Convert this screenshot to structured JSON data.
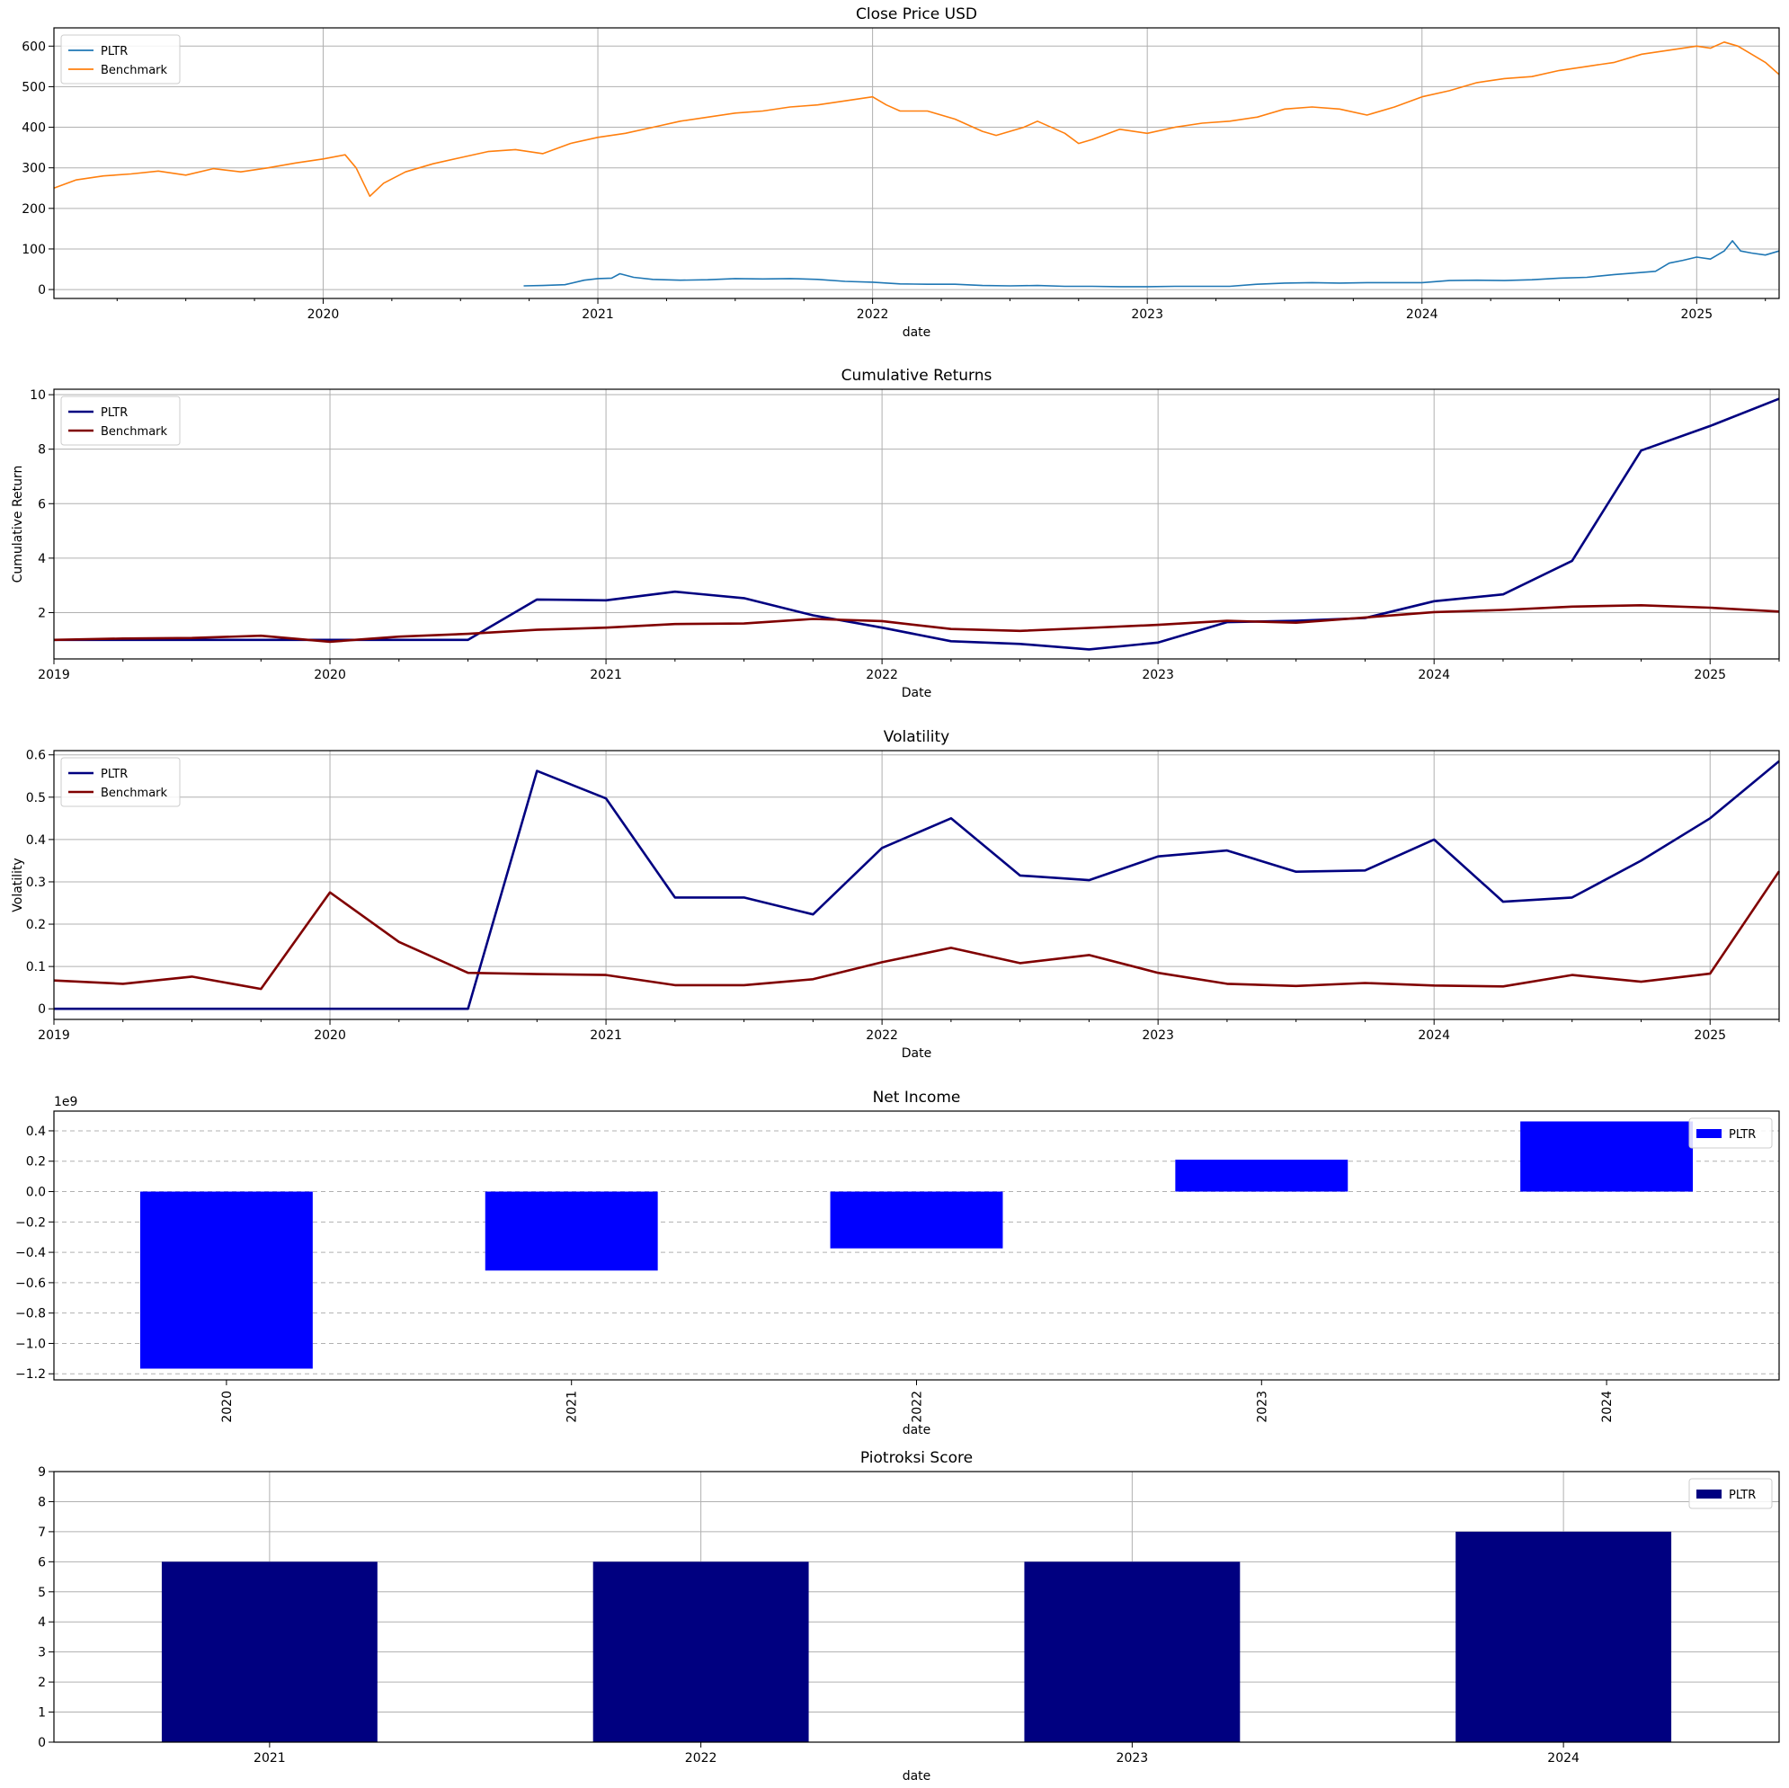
{
  "chart_data": [
    {
      "id": "close",
      "type": "line",
      "title": "Close Price USD",
      "xlabel": "date",
      "ylabel": "",
      "xlim": [
        2019.02,
        2025.3
      ],
      "ylim": [
        -22,
        645
      ],
      "yticks": [
        0,
        100,
        200,
        300,
        400,
        500,
        600
      ],
      "xticks": [
        2020,
        2021,
        2022,
        2023,
        2024,
        2025
      ],
      "grid": true,
      "legend": "top-left",
      "series": [
        {
          "name": "PLTR",
          "color": "#1f77b4",
          "x": [
            2020.73,
            2020.8,
            2020.88,
            2020.95,
            2021.0,
            2021.05,
            2021.08,
            2021.13,
            2021.2,
            2021.3,
            2021.4,
            2021.5,
            2021.6,
            2021.7,
            2021.8,
            2021.9,
            2022.0,
            2022.1,
            2022.2,
            2022.3,
            2022.4,
            2022.5,
            2022.6,
            2022.7,
            2022.8,
            2022.9,
            2023.0,
            2023.1,
            2023.2,
            2023.3,
            2023.4,
            2023.5,
            2023.6,
            2023.7,
            2023.8,
            2023.9,
            2024.0,
            2024.1,
            2024.2,
            2024.3,
            2024.4,
            2024.5,
            2024.6,
            2024.7,
            2024.8,
            2024.85,
            2024.9,
            2024.95,
            2025.0,
            2025.05,
            2025.1,
            2025.13,
            2025.16,
            2025.2,
            2025.25,
            2025.3
          ],
          "y": [
            9,
            10,
            12,
            23,
            27,
            28,
            39,
            30,
            25,
            23,
            24,
            27,
            26,
            27,
            25,
            20,
            18,
            14,
            13,
            13,
            10,
            9,
            10,
            8,
            8,
            7,
            7,
            8,
            8,
            8,
            13,
            16,
            17,
            16,
            17,
            17,
            17,
            22,
            23,
            22,
            24,
            28,
            30,
            37,
            42,
            45,
            65,
            72,
            80,
            75,
            95,
            120,
            95,
            90,
            85,
            95
          ]
        },
        {
          "name": "Benchmark",
          "color": "#ff7f0e",
          "x": [
            2019.02,
            2019.1,
            2019.2,
            2019.3,
            2019.4,
            2019.5,
            2019.6,
            2019.7,
            2019.8,
            2019.9,
            2020.0,
            2020.08,
            2020.12,
            2020.17,
            2020.22,
            2020.3,
            2020.4,
            2020.5,
            2020.6,
            2020.7,
            2020.8,
            2020.9,
            2021.0,
            2021.1,
            2021.2,
            2021.3,
            2021.4,
            2021.5,
            2021.6,
            2021.7,
            2021.8,
            2021.9,
            2022.0,
            2022.05,
            2022.1,
            2022.2,
            2022.3,
            2022.4,
            2022.45,
            2022.55,
            2022.6,
            2022.7,
            2022.75,
            2022.8,
            2022.9,
            2023.0,
            2023.1,
            2023.2,
            2023.3,
            2023.4,
            2023.5,
            2023.6,
            2023.7,
            2023.8,
            2023.9,
            2024.0,
            2024.1,
            2024.2,
            2024.3,
            2024.4,
            2024.5,
            2024.6,
            2024.7,
            2024.8,
            2024.9,
            2025.0,
            2025.05,
            2025.1,
            2025.15,
            2025.2,
            2025.25,
            2025.3
          ],
          "y": [
            250,
            270,
            280,
            285,
            292,
            282,
            298,
            290,
            300,
            312,
            322,
            332,
            300,
            230,
            262,
            290,
            310,
            325,
            340,
            345,
            335,
            360,
            375,
            385,
            400,
            415,
            425,
            435,
            440,
            450,
            455,
            465,
            475,
            455,
            440,
            440,
            420,
            390,
            380,
            400,
            415,
            385,
            360,
            370,
            395,
            385,
            400,
            410,
            415,
            425,
            445,
            450,
            445,
            430,
            450,
            475,
            490,
            510,
            520,
            525,
            540,
            550,
            560,
            580,
            590,
            600,
            595,
            610,
            600,
            580,
            560,
            530
          ]
        }
      ]
    },
    {
      "id": "cumret",
      "type": "line",
      "title": "Cumulative Returns",
      "xlabel": "Date",
      "ylabel": "Cumulative Return",
      "xlim": [
        2019.0,
        2025.25
      ],
      "ylim": [
        0.3,
        10.2
      ],
      "yticks": [
        2,
        4,
        6,
        8,
        10
      ],
      "xticks": [
        2019,
        2020,
        2021,
        2022,
        2023,
        2024,
        2025
      ],
      "grid": true,
      "legend": "top-left",
      "series": [
        {
          "name": "PLTR",
          "color": "#000080",
          "x": [
            2019.0,
            2019.25,
            2019.5,
            2019.75,
            2020.0,
            2020.25,
            2020.5,
            2020.75,
            2021.0,
            2021.25,
            2021.5,
            2021.75,
            2022.0,
            2022.25,
            2022.5,
            2022.75,
            2023.0,
            2023.25,
            2023.5,
            2023.75,
            2024.0,
            2024.25,
            2024.5,
            2024.75,
            2025.0,
            2025.25
          ],
          "y": [
            1.0,
            1.0,
            1.0,
            1.0,
            1.0,
            1.0,
            1.0,
            2.48,
            2.45,
            2.77,
            2.53,
            1.9,
            1.45,
            0.95,
            0.85,
            0.65,
            0.9,
            1.65,
            1.7,
            1.8,
            2.42,
            2.67,
            3.9,
            7.95,
            8.85,
            9.85
          ]
        },
        {
          "name": "Benchmark",
          "color": "#800000",
          "x": [
            2019.0,
            2019.25,
            2019.5,
            2019.75,
            2020.0,
            2020.25,
            2020.5,
            2020.75,
            2021.0,
            2021.25,
            2021.5,
            2021.75,
            2022.0,
            2022.25,
            2022.5,
            2022.75,
            2023.0,
            2023.25,
            2023.5,
            2023.75,
            2024.0,
            2024.25,
            2024.5,
            2024.75,
            2025.0,
            2025.25
          ],
          "y": [
            1.0,
            1.05,
            1.07,
            1.15,
            0.93,
            1.12,
            1.22,
            1.37,
            1.45,
            1.58,
            1.6,
            1.77,
            1.69,
            1.4,
            1.33,
            1.44,
            1.55,
            1.7,
            1.63,
            1.82,
            2.02,
            2.1,
            2.22,
            2.27,
            2.18,
            2.04
          ]
        }
      ]
    },
    {
      "id": "vol",
      "type": "line",
      "title": "Volatility",
      "xlabel": "Date",
      "ylabel": "Volatility",
      "xlim": [
        2019.0,
        2025.25
      ],
      "ylim": [
        -0.025,
        0.61
      ],
      "yticks": [
        0.0,
        0.1,
        0.2,
        0.3,
        0.4,
        0.5,
        0.6
      ],
      "xticks": [
        2019,
        2020,
        2021,
        2022,
        2023,
        2024,
        2025
      ],
      "grid": true,
      "legend": "top-left",
      "series": [
        {
          "name": "PLTR",
          "color": "#000080",
          "x": [
            2019.0,
            2019.25,
            2019.5,
            2019.75,
            2020.0,
            2020.25,
            2020.5,
            2020.75,
            2021.0,
            2021.25,
            2021.5,
            2021.75,
            2022.0,
            2022.25,
            2022.5,
            2022.75,
            2023.0,
            2023.25,
            2023.5,
            2023.75,
            2024.0,
            2024.25,
            2024.5,
            2024.75,
            2025.0,
            2025.25
          ],
          "y": [
            0.0,
            0.0,
            0.0,
            0.0,
            0.0,
            0.0,
            0.0,
            0.562,
            0.497,
            0.263,
            0.263,
            0.223,
            0.38,
            0.45,
            0.315,
            0.304,
            0.36,
            0.374,
            0.324,
            0.327,
            0.4,
            0.253,
            0.263,
            0.35,
            0.45,
            0.585
          ]
        },
        {
          "name": "Benchmark",
          "color": "#800000",
          "x": [
            2019.0,
            2019.25,
            2019.5,
            2019.75,
            2020.0,
            2020.25,
            2020.5,
            2020.75,
            2021.0,
            2021.25,
            2021.5,
            2021.75,
            2022.0,
            2022.25,
            2022.5,
            2022.75,
            2023.0,
            2023.25,
            2023.5,
            2023.75,
            2024.0,
            2024.25,
            2024.5,
            2024.75,
            2025.0,
            2025.25
          ],
          "y": [
            0.067,
            0.059,
            0.076,
            0.047,
            0.275,
            0.158,
            0.085,
            0.082,
            0.08,
            0.056,
            0.056,
            0.07,
            0.11,
            0.144,
            0.108,
            0.127,
            0.085,
            0.059,
            0.054,
            0.061,
            0.055,
            0.053,
            0.08,
            0.064,
            0.083,
            0.325
          ]
        }
      ]
    },
    {
      "id": "netincome",
      "type": "bar",
      "title": "Net Income",
      "xlabel": "date",
      "ylabel": "",
      "multiplier": "1e9",
      "categories": [
        "2020",
        "2021",
        "2022",
        "2023",
        "2024"
      ],
      "ylim": [
        -1.24,
        0.53
      ],
      "yticks": [
        -1.2,
        -1.0,
        -0.8,
        -0.6,
        -0.4,
        -0.2,
        0.0,
        0.2,
        0.4
      ],
      "ytick_labels": [
        "−1.2",
        "−1.0",
        "−0.8",
        "−0.6",
        "−0.4",
        "−0.2",
        "0.0",
        "0.2",
        "0.4"
      ],
      "grid": "y-dashed",
      "legend": "top-right",
      "series": [
        {
          "name": "PLTR",
          "color": "#0000ff",
          "values": [
            -1.166,
            -0.52,
            -0.374,
            0.21,
            0.462
          ]
        }
      ]
    },
    {
      "id": "piotroski",
      "type": "bar",
      "title": "Piotroksi Score",
      "xlabel": "date",
      "ylabel": "",
      "categories": [
        "2021",
        "2022",
        "2023",
        "2024"
      ],
      "ylim": [
        0,
        9
      ],
      "yticks": [
        0,
        1,
        2,
        3,
        4,
        5,
        6,
        7,
        8,
        9
      ],
      "grid": true,
      "legend": "top-right",
      "series": [
        {
          "name": "PLTR",
          "color": "#000080",
          "values": [
            6,
            6,
            6,
            7
          ]
        }
      ]
    }
  ]
}
